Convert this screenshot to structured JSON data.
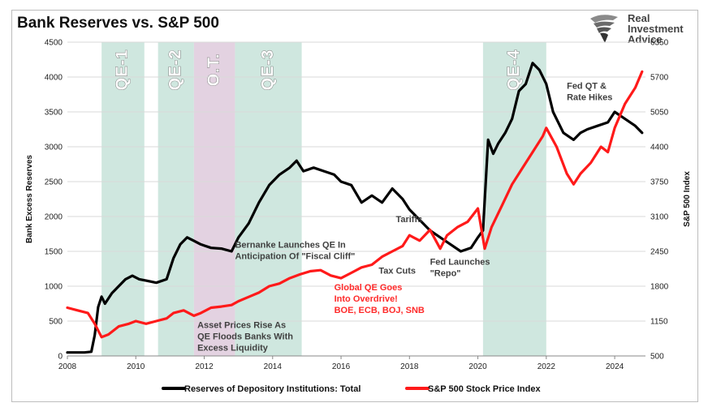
{
  "chart_data": {
    "type": "line",
    "title": "Bank Reserves vs. S&P 500",
    "ylabel_left": "Bank Excess Reserves",
    "ylabel_right": "S&P 500 Index",
    "xlim": [
      2008,
      2024.9
    ],
    "ylim_left": [
      0,
      4500
    ],
    "ylim_right": [
      500,
      6350
    ],
    "x_ticks": [
      "2008",
      "2010",
      "2012",
      "2014",
      "2016",
      "2018",
      "2020",
      "2022",
      "2024"
    ],
    "y_left_ticks": [
      "0",
      "500",
      "1000",
      "1500",
      "2000",
      "2500",
      "3000",
      "3500",
      "4000",
      "4500"
    ],
    "y_right_ticks": [
      "500",
      "1150",
      "1800",
      "2450",
      "3100",
      "3750",
      "4400",
      "5050",
      "5700",
      "6350"
    ],
    "grid": "horizontal",
    "legend_position": "bottom",
    "shaded_periods": [
      {
        "label": "QE-1",
        "start": 2009.0,
        "end": 2010.25,
        "color": "#cfe7df"
      },
      {
        "label": "QE-2",
        "start": 2010.65,
        "end": 2011.7,
        "color": "#cfe7df"
      },
      {
        "label": "O.T.",
        "start": 2011.7,
        "end": 2012.9,
        "color": "#e3d2e1"
      },
      {
        "label": "QE-3",
        "start": 2012.9,
        "end": 2014.85,
        "color": "#cfe7df"
      },
      {
        "label": "QE-4",
        "start": 2020.15,
        "end": 2022.0,
        "color": "#cfe7df"
      }
    ],
    "series": [
      {
        "name": "Reserves of Depository Institutions: Total",
        "axis": "left",
        "color": "#000000",
        "x": [
          2008.0,
          2008.5,
          2008.7,
          2008.8,
          2008.9,
          2009.0,
          2009.1,
          2009.3,
          2009.5,
          2009.7,
          2009.9,
          2010.1,
          2010.3,
          2010.6,
          2010.9,
          2011.1,
          2011.3,
          2011.5,
          2011.7,
          2011.9,
          2012.2,
          2012.5,
          2012.8,
          2013.0,
          2013.3,
          2013.6,
          2013.9,
          2014.2,
          2014.5,
          2014.7,
          2014.9,
          2015.2,
          2015.5,
          2015.8,
          2016.0,
          2016.3,
          2016.6,
          2016.9,
          2017.2,
          2017.5,
          2017.8,
          2018.0,
          2018.3,
          2018.6,
          2018.9,
          2019.2,
          2019.5,
          2019.8,
          2020.0,
          2020.15,
          2020.3,
          2020.45,
          2020.6,
          2020.8,
          2021.0,
          2021.2,
          2021.4,
          2021.6,
          2021.8,
          2022.0,
          2022.2,
          2022.5,
          2022.8,
          2023.0,
          2023.2,
          2023.5,
          2023.8,
          2024.0,
          2024.3,
          2024.6,
          2024.8
        ],
        "values": [
          50,
          50,
          60,
          300,
          700,
          850,
          750,
          900,
          1000,
          1100,
          1150,
          1100,
          1080,
          1050,
          1100,
          1400,
          1600,
          1700,
          1650,
          1600,
          1550,
          1540,
          1500,
          1700,
          1900,
          2200,
          2450,
          2600,
          2700,
          2800,
          2650,
          2700,
          2650,
          2600,
          2500,
          2450,
          2200,
          2300,
          2200,
          2400,
          2250,
          2100,
          1950,
          1800,
          1700,
          1600,
          1500,
          1550,
          1700,
          1800,
          3100,
          2900,
          3050,
          3200,
          3400,
          3800,
          3900,
          4200,
          4100,
          3900,
          3500,
          3200,
          3100,
          3200,
          3250,
          3300,
          3350,
          3500,
          3400,
          3300,
          3200
        ]
      },
      {
        "name": "S&P 500 Stock Price Index",
        "axis": "right",
        "color": "#ff1a1a",
        "x": [
          2008.0,
          2008.3,
          2008.6,
          2008.8,
          2009.0,
          2009.2,
          2009.5,
          2009.8,
          2010.0,
          2010.3,
          2010.6,
          2010.9,
          2011.1,
          2011.4,
          2011.7,
          2011.9,
          2012.2,
          2012.5,
          2012.8,
          2013.0,
          2013.3,
          2013.6,
          2013.9,
          2014.2,
          2014.5,
          2014.8,
          2015.1,
          2015.4,
          2015.7,
          2016.0,
          2016.3,
          2016.6,
          2016.9,
          2017.2,
          2017.5,
          2017.8,
          2018.0,
          2018.3,
          2018.6,
          2018.9,
          2019.1,
          2019.4,
          2019.7,
          2020.0,
          2020.2,
          2020.4,
          2020.7,
          2021.0,
          2021.3,
          2021.6,
          2021.9,
          2022.0,
          2022.3,
          2022.6,
          2022.8,
          2023.0,
          2023.3,
          2023.6,
          2023.8,
          2024.0,
          2024.3,
          2024.6,
          2024.8
        ],
        "values": [
          1400,
          1350,
          1300,
          1100,
          850,
          900,
          1050,
          1100,
          1150,
          1100,
          1150,
          1200,
          1300,
          1350,
          1250,
          1300,
          1400,
          1420,
          1450,
          1520,
          1600,
          1680,
          1800,
          1850,
          1950,
          2020,
          2080,
          2100,
          2000,
          1950,
          2050,
          2150,
          2200,
          2350,
          2450,
          2550,
          2750,
          2650,
          2850,
          2500,
          2750,
          2900,
          3000,
          3250,
          2500,
          2900,
          3300,
          3700,
          4000,
          4300,
          4600,
          4750,
          4400,
          3900,
          3700,
          3900,
          4100,
          4400,
          4300,
          4750,
          5200,
          5500,
          5800
        ]
      }
    ],
    "annotations": [
      {
        "text": [
          "Bernanke Launches QE In",
          "Anticipation Of \"Fiscal Cliff\""
        ],
        "x": 2012.9,
        "y_left": 1550,
        "color": "#404040"
      },
      {
        "text": [
          "Asset Prices Rise  As",
          "QE Floods Banks With",
          "Excess Liquidity"
        ],
        "x": 2011.8,
        "y_left": 400,
        "color": "#404040"
      },
      {
        "text": [
          "Global QE Goes",
          "Into Overdrive!",
          "BOE, ECB, BOJ, SNB"
        ],
        "x": 2015.8,
        "y_left": 940,
        "color": "#ff2a2a"
      },
      {
        "text": [
          "Tariffs"
        ],
        "x": 2017.6,
        "y_left": 1920,
        "color": "#404040"
      },
      {
        "text": [
          "Tax Cuts"
        ],
        "x": 2017.1,
        "y_left": 1180,
        "color": "#404040"
      },
      {
        "text": [
          "Fed Launches",
          "\"Repo\""
        ],
        "x": 2018.6,
        "y_left": 1310,
        "color": "#404040"
      },
      {
        "text": [
          "Fed QT &",
          "Rate Hikes"
        ],
        "x": 2022.6,
        "y_left": 3830,
        "color": "#404040"
      }
    ]
  },
  "logo": {
    "lines": [
      "Real",
      "Investment",
      "Advice"
    ],
    "icon": "eagle-icon"
  }
}
